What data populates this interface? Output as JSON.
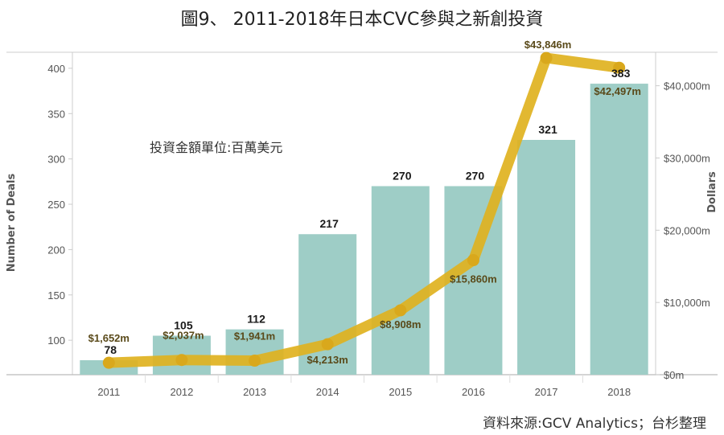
{
  "page": {
    "title": "圖9、 2011-2018年日本CVC參與之新創投資",
    "note": "投資金額單位:百萬美元",
    "source": "資料來源:GCV Analytics；台杉整理"
  },
  "colors": {
    "bar": "#9ecdc6",
    "line": "#e0b220",
    "dot": "#d9a81c",
    "axis": "#cccccc"
  },
  "chart_data": {
    "type": "bar",
    "categories": [
      "2011",
      "2012",
      "2013",
      "2014",
      "2015",
      "2016",
      "2017",
      "2018"
    ],
    "series": [
      {
        "type": "bar",
        "axis": "left",
        "values": [
          78,
          105,
          112,
          217,
          270,
          270,
          321,
          383
        ],
        "labels": [
          "78",
          "105",
          "112",
          "217",
          "270",
          "270",
          "321",
          "383"
        ]
      },
      {
        "type": "line",
        "axis": "right",
        "values": [
          1652,
          2037,
          1941,
          4213,
          8908,
          15860,
          43846,
          42497
        ],
        "labels": [
          "$1,652m",
          "$2,037m",
          "$1,941m",
          "$4,213m",
          "$8,908m",
          "$15,860m",
          "$43,846m",
          "$42,497m"
        ]
      }
    ],
    "ylabel": "Number of Deals",
    "ylabel_right": "Dollars",
    "ylim": [
      62,
      415
    ],
    "ylim_right": [
      0,
      44300
    ],
    "yticks": [
      100,
      150,
      200,
      250,
      300,
      350,
      400
    ],
    "ytick_labels": [
      "100",
      "150",
      "200",
      "250",
      "300",
      "350",
      "400"
    ],
    "yticks_right": [
      0,
      10000,
      20000,
      30000,
      40000
    ],
    "ytick_labels_right": [
      "$0m",
      "$10,000m",
      "$20,000m",
      "$30,000m",
      "$40,000m"
    ],
    "grid": false,
    "legend": "none"
  }
}
